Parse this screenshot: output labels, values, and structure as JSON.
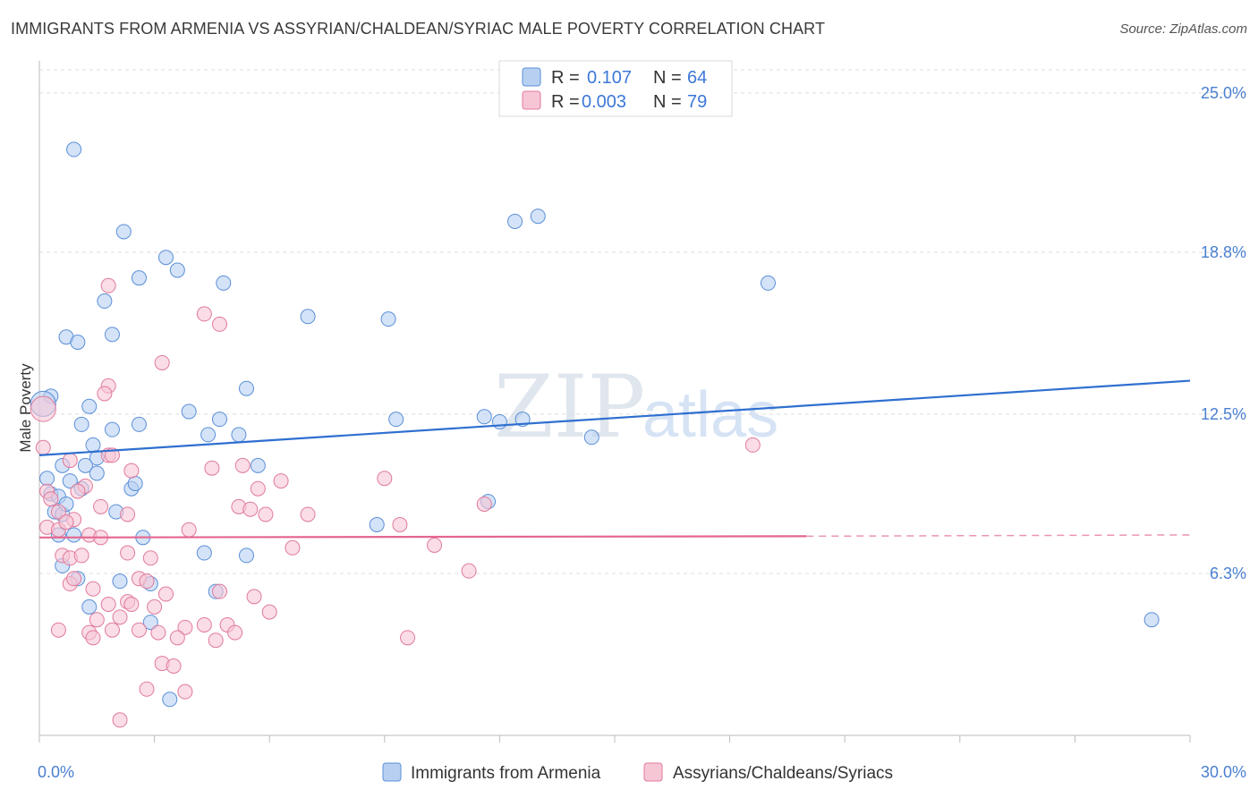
{
  "header": {
    "title": "IMMIGRANTS FROM ARMENIA VS ASSYRIAN/CHALDEAN/SYRIAC MALE POVERTY CORRELATION CHART",
    "source": "Source: ZipAtlas.com"
  },
  "watermark": {
    "zip": "ZIP",
    "atlas": "atlas"
  },
  "colors": {
    "blue_fill": "#b7d0f2",
    "blue_stroke": "#5b8fd8",
    "blue_line": "#2f6fd0",
    "pink_fill": "#f6c6d5",
    "pink_stroke": "#e07a9c",
    "pink_line": "#e4668f",
    "grid": "#dddddd",
    "tick_text": "#4a7fd0"
  },
  "legend": {
    "rows": [
      {
        "r_label": "R =",
        "r_value": "0.107",
        "n_label": "N =",
        "n_value": "64"
      },
      {
        "r_label": "R =",
        "r_value": "0.003",
        "n_label": "N =",
        "n_value": "79"
      }
    ]
  },
  "chart_data": {
    "type": "scatter",
    "title": "IMMIGRANTS FROM ARMENIA VS ASSYRIAN/CHALDEAN/SYRIAC MALE POVERTY CORRELATION CHART",
    "xlabel": "",
    "ylabel": "Male Poverty",
    "xlim": [
      0,
      30
    ],
    "ylim": [
      0,
      25.9
    ],
    "x_tick_labels": [
      "0.0%",
      "30.0%"
    ],
    "y_ticks": [
      6.3,
      12.5,
      18.8,
      25.0
    ],
    "y_tick_labels": [
      "6.3%",
      "12.5%",
      "18.8%",
      "25.0%"
    ],
    "grid": true,
    "legend_position": "top-center",
    "series": [
      {
        "name": "Immigrants from Armenia",
        "R": 0.107,
        "N": 64,
        "trend": {
          "x": [
            0,
            30
          ],
          "y": [
            10.9,
            13.8
          ]
        },
        "points": [
          [
            0.9,
            22.8
          ],
          [
            2.2,
            19.6
          ],
          [
            3.3,
            18.6
          ],
          [
            2.6,
            17.8
          ],
          [
            3.6,
            18.1
          ],
          [
            4.8,
            17.6
          ],
          [
            1.7,
            16.9
          ],
          [
            7.0,
            16.3
          ],
          [
            9.1,
            16.2
          ],
          [
            12.4,
            20.0
          ],
          [
            13.0,
            20.2
          ],
          [
            19.0,
            17.6
          ],
          [
            0.7,
            15.5
          ],
          [
            1.0,
            15.3
          ],
          [
            1.9,
            15.6
          ],
          [
            5.4,
            13.5
          ],
          [
            0.3,
            13.2
          ],
          [
            1.3,
            12.8
          ],
          [
            3.9,
            12.6
          ],
          [
            4.7,
            12.3
          ],
          [
            1.1,
            12.1
          ],
          [
            2.6,
            12.1
          ],
          [
            1.9,
            11.9
          ],
          [
            9.3,
            12.3
          ],
          [
            11.6,
            12.4
          ],
          [
            12.0,
            12.2
          ],
          [
            12.6,
            12.3
          ],
          [
            4.4,
            11.7
          ],
          [
            5.2,
            11.7
          ],
          [
            14.4,
            11.6
          ],
          [
            1.4,
            11.3
          ],
          [
            1.5,
            10.8
          ],
          [
            0.6,
            10.5
          ],
          [
            1.2,
            10.5
          ],
          [
            1.5,
            10.2
          ],
          [
            5.7,
            10.5
          ],
          [
            0.2,
            10.0
          ],
          [
            0.8,
            9.9
          ],
          [
            1.1,
            9.6
          ],
          [
            2.4,
            9.6
          ],
          [
            2.5,
            9.8
          ],
          [
            0.3,
            9.4
          ],
          [
            0.5,
            9.3
          ],
          [
            11.7,
            9.1
          ],
          [
            0.4,
            8.7
          ],
          [
            0.6,
            8.6
          ],
          [
            2.0,
            8.7
          ],
          [
            0.7,
            9.0
          ],
          [
            8.8,
            8.2
          ],
          [
            0.5,
            7.8
          ],
          [
            0.9,
            7.8
          ],
          [
            2.7,
            7.7
          ],
          [
            4.3,
            7.1
          ],
          [
            5.4,
            7.0
          ],
          [
            0.6,
            6.6
          ],
          [
            1.0,
            6.1
          ],
          [
            2.1,
            6.0
          ],
          [
            2.9,
            5.9
          ],
          [
            4.6,
            5.6
          ],
          [
            1.3,
            5.0
          ],
          [
            29.0,
            4.5
          ],
          [
            2.9,
            4.4
          ],
          [
            3.4,
            1.4
          ],
          [
            0.1,
            12.9
          ]
        ]
      },
      {
        "name": "Assyrians/Chaldeans/Syriacs",
        "R": 0.003,
        "N": 79,
        "trend": {
          "x": [
            0,
            20
          ],
          "y": [
            7.7,
            7.75
          ],
          "dashed_extension": {
            "x": [
              20,
              30
            ],
            "y": [
              7.75,
              7.8
            ]
          }
        },
        "points": [
          [
            0.1,
            12.7
          ],
          [
            0.1,
            11.2
          ],
          [
            1.8,
            17.5
          ],
          [
            4.3,
            16.4
          ],
          [
            4.7,
            16.0
          ],
          [
            3.2,
            14.5
          ],
          [
            1.8,
            13.6
          ],
          [
            1.7,
            13.3
          ],
          [
            18.6,
            11.3
          ],
          [
            0.8,
            10.7
          ],
          [
            1.8,
            10.9
          ],
          [
            2.4,
            10.3
          ],
          [
            4.5,
            10.4
          ],
          [
            5.3,
            10.5
          ],
          [
            9.0,
            10.0
          ],
          [
            6.3,
            9.9
          ],
          [
            1.2,
            9.7
          ],
          [
            5.7,
            9.6
          ],
          [
            1.0,
            9.5
          ],
          [
            0.2,
            9.5
          ],
          [
            0.5,
            8.7
          ],
          [
            1.6,
            8.9
          ],
          [
            2.3,
            8.6
          ],
          [
            5.2,
            8.9
          ],
          [
            5.5,
            8.8
          ],
          [
            5.9,
            8.6
          ],
          [
            7.0,
            8.6
          ],
          [
            11.6,
            9.0
          ],
          [
            0.9,
            8.4
          ],
          [
            0.2,
            8.1
          ],
          [
            0.5,
            8.0
          ],
          [
            1.3,
            7.8
          ],
          [
            0.7,
            8.3
          ],
          [
            1.6,
            7.7
          ],
          [
            3.9,
            8.0
          ],
          [
            9.4,
            8.2
          ],
          [
            2.3,
            7.1
          ],
          [
            0.6,
            7.0
          ],
          [
            0.8,
            6.9
          ],
          [
            1.1,
            7.0
          ],
          [
            2.9,
            6.9
          ],
          [
            6.6,
            7.3
          ],
          [
            10.3,
            7.4
          ],
          [
            11.2,
            6.4
          ],
          [
            0.8,
            5.9
          ],
          [
            0.9,
            6.1
          ],
          [
            1.4,
            5.7
          ],
          [
            2.6,
            6.1
          ],
          [
            2.8,
            6.0
          ],
          [
            3.3,
            5.5
          ],
          [
            5.6,
            5.4
          ],
          [
            2.3,
            5.2
          ],
          [
            1.8,
            5.1
          ],
          [
            6.0,
            4.8
          ],
          [
            1.5,
            4.5
          ],
          [
            2.1,
            4.6
          ],
          [
            0.5,
            4.1
          ],
          [
            1.3,
            4.0
          ],
          [
            1.9,
            4.1
          ],
          [
            2.6,
            4.1
          ],
          [
            3.8,
            4.2
          ],
          [
            4.3,
            4.3
          ],
          [
            4.9,
            4.3
          ],
          [
            5.1,
            4.0
          ],
          [
            1.4,
            3.8
          ],
          [
            3.1,
            4.0
          ],
          [
            3.6,
            3.8
          ],
          [
            4.6,
            3.7
          ],
          [
            9.6,
            3.8
          ],
          [
            3.2,
            2.8
          ],
          [
            3.5,
            2.7
          ],
          [
            2.8,
            1.8
          ],
          [
            3.8,
            1.7
          ],
          [
            2.1,
            0.6
          ],
          [
            2.4,
            5.1
          ],
          [
            4.7,
            5.6
          ],
          [
            3.0,
            5.0
          ],
          [
            1.9,
            10.9
          ],
          [
            0.3,
            9.2
          ]
        ]
      }
    ]
  },
  "bottom_legend": {
    "items": [
      "Immigrants from Armenia",
      "Assyrians/Chaldeans/Syriacs"
    ]
  }
}
